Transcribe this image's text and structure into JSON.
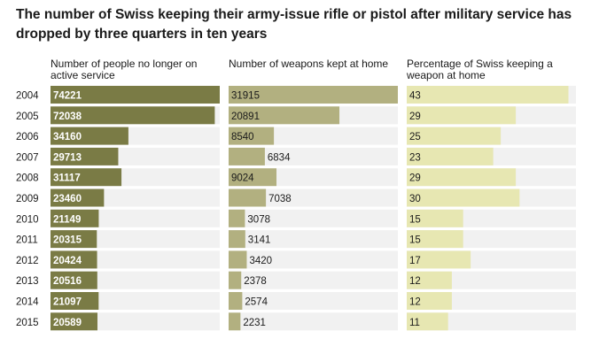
{
  "title": "The number of Swiss keeping their army-issue rifle or pistol after military service has dropped by three quarters in ten years",
  "colors": {
    "col1_bar": "#7a7b45",
    "col2_bar": "#b2b080",
    "col3_bar": "#e7e7b2",
    "track": "#f1f1f1"
  },
  "chart_data": {
    "type": "bar",
    "title": "The number of Swiss keeping their army-issue rifle or pistol after military service has dropped by three quarters in ten years",
    "categories": [
      "2004",
      "2005",
      "2006",
      "2007",
      "2008",
      "2009",
      "2010",
      "2011",
      "2012",
      "2013",
      "2014",
      "2015"
    ],
    "series": [
      {
        "name": "Number of people no longer on active service",
        "values": [
          74221,
          72038,
          34160,
          29713,
          31117,
          23460,
          21149,
          20315,
          20424,
          20516,
          21097,
          20589
        ],
        "max": 74221
      },
      {
        "name": "Number of weapons kept at home",
        "values": [
          31915,
          20891,
          8540,
          6834,
          9024,
          7038,
          3078,
          3141,
          3420,
          2378,
          2574,
          2231
        ],
        "max": 31915
      },
      {
        "name": "Percentage of Swiss keeping a weapon at home",
        "values": [
          43,
          29,
          25,
          23,
          29,
          30,
          15,
          15,
          17,
          12,
          12,
          11
        ],
        "max": 45
      }
    ]
  }
}
